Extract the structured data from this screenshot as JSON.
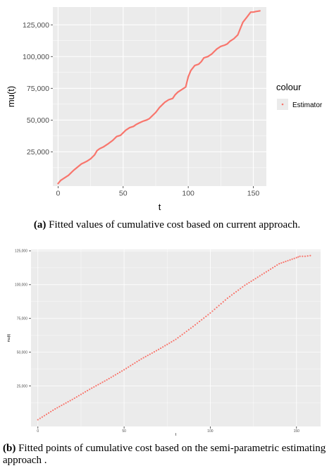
{
  "captions": {
    "a_tag": "(a)",
    "a_text": " Fitted values of cumulative cost based on current approach.",
    "b_tag": "(b)",
    "b_text": " Fitted points of cumulative cost based on the semi-parametric estimating approach ."
  },
  "colors": {
    "series": "#F8766D",
    "panel": "#EBEBEB",
    "grid": "#FFFFFF"
  },
  "chart_data": [
    {
      "type": "line",
      "xlabel": "t",
      "ylabel": "mu(t)",
      "xlim": [
        -4,
        160
      ],
      "ylim": [
        -2000,
        139000
      ],
      "xticks": [
        0,
        50,
        100,
        150
      ],
      "xtick_labels": [
        "0",
        "50",
        "100",
        "150"
      ],
      "yticks": [
        25000,
        50000,
        75000,
        100000,
        125000
      ],
      "ytick_labels": [
        "25,000",
        "50,000",
        "75,000",
        "100,000",
        "125,000"
      ],
      "grid": true,
      "legend": {
        "title": "colour",
        "position": "right",
        "entries": [
          "Estimator"
        ]
      },
      "series": [
        {
          "name": "Estimator",
          "x": [
            0,
            2,
            5,
            8,
            10,
            12,
            15,
            18,
            20,
            22,
            25,
            28,
            30,
            32,
            35,
            38,
            40,
            42,
            45,
            48,
            50,
            52,
            55,
            58,
            60,
            62,
            65,
            68,
            70,
            72,
            75,
            78,
            80,
            82,
            85,
            88,
            90,
            92,
            95,
            98,
            100,
            102,
            105,
            108,
            110,
            112,
            115,
            118,
            120,
            122,
            125,
            128,
            130,
            132,
            135,
            138,
            140,
            142,
            145,
            148,
            150,
            152,
            155
          ],
          "y": [
            0,
            2500,
            4500,
            6500,
            8500,
            10500,
            13000,
            15500,
            16500,
            17500,
            19500,
            22500,
            26000,
            27500,
            29000,
            31000,
            32500,
            34000,
            37000,
            38000,
            40000,
            42000,
            44000,
            45000,
            46500,
            47500,
            49000,
            50000,
            51000,
            53000,
            56000,
            60000,
            62000,
            64000,
            66000,
            67000,
            70000,
            72000,
            74000,
            76000,
            84000,
            89000,
            93000,
            94000,
            96000,
            99000,
            100000,
            102000,
            104000,
            106000,
            108000,
            109000,
            110000,
            112000,
            114000,
            117000,
            122000,
            127000,
            131000,
            135000,
            135000,
            135500,
            136000
          ]
        }
      ]
    },
    {
      "type": "scatter",
      "xlabel": "t",
      "ylabel": "mu(t)",
      "xlim": [
        -4,
        164
      ],
      "ylim": [
        -5000,
        126000
      ],
      "xticks": [
        0,
        50,
        100,
        150
      ],
      "xtick_labels": [
        "0",
        "50",
        "100",
        "150"
      ],
      "yticks": [
        25000,
        50000,
        75000,
        100000,
        125000
      ],
      "ytick_labels": [
        "25,000",
        "50,000",
        "75,000",
        "100,000",
        "125,000"
      ],
      "grid": true,
      "series": [
        {
          "x": [
            0,
            10,
            20,
            30,
            40,
            50,
            60,
            70,
            80,
            90,
            100,
            110,
            120,
            130,
            140,
            150,
            152,
            155,
            158
          ],
          "y": [
            0,
            8000,
            15000,
            22500,
            29500,
            37000,
            45000,
            52000,
            59500,
            69000,
            79000,
            90000,
            99500,
            107500,
            115500,
            120000,
            121000,
            121000,
            121500
          ]
        }
      ]
    }
  ]
}
